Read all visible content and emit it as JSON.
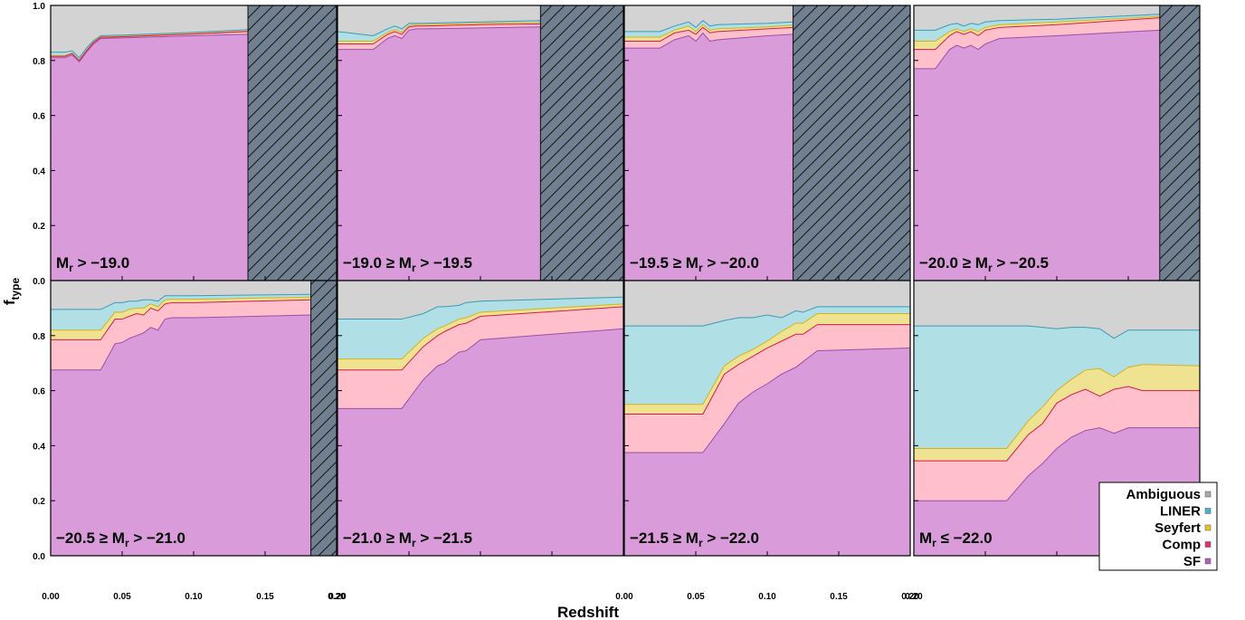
{
  "chart_data": {
    "type": "area",
    "stacked": true,
    "xlabel": "Redshift",
    "ylabel": "f",
    "ylabel_sub": "type",
    "xlim": [
      0.0,
      0.2
    ],
    "ylim": [
      0.0,
      1.0
    ],
    "x_ticks": [
      "0.00",
      "0.05",
      "0.10",
      "0.15",
      "0.20"
    ],
    "y_ticks": [
      "0.0",
      "0.2",
      "0.4",
      "0.6",
      "0.8",
      "1.0"
    ],
    "legend": {
      "placement": "lower-right",
      "entries": [
        {
          "label": "Ambiguous",
          "color": "#aaaaaa"
        },
        {
          "label": "LINER",
          "color": "#4ab3c9"
        },
        {
          "label": "Seyfert",
          "color": "#e8c230"
        },
        {
          "label": "Comp",
          "color": "#e0306a"
        },
        {
          "label": "SF",
          "color": "#b060c0"
        }
      ]
    },
    "colors": {
      "SF": "#da9bda",
      "Comp": "#ffc0cb",
      "Seyfert": "#efe391",
      "LINER": "#b0dfe5",
      "Ambiguous": "#d3d3d3",
      "boundary_sf": "#9a4fa8",
      "boundary_comp": "#d81b4a",
      "boundary_seyfert": "#d4b21e",
      "boundary_liner": "#3a9ab8",
      "hatch_bg": "#708090"
    },
    "panels": [
      {
        "label": {
          "pre": "M",
          "sub": "r",
          "post": " > −19.0"
        },
        "hatch_from": 0.138,
        "x": [
          0.0,
          0.01,
          0.015,
          0.02,
          0.025,
          0.03,
          0.035,
          0.05,
          0.1,
          0.138
        ],
        "SF": [
          0.81,
          0.81,
          0.82,
          0.795,
          0.83,
          0.86,
          0.88,
          0.882,
          0.89,
          0.895
        ],
        "Comp": [
          0.815,
          0.815,
          0.825,
          0.8,
          0.835,
          0.865,
          0.884,
          0.886,
          0.896,
          0.905
        ],
        "Seyfert": [
          0.818,
          0.818,
          0.827,
          0.802,
          0.837,
          0.867,
          0.886,
          0.888,
          0.898,
          0.907
        ],
        "LINER": [
          0.83,
          0.83,
          0.835,
          0.81,
          0.845,
          0.872,
          0.89,
          0.892,
          0.902,
          0.912
        ]
      },
      {
        "label": {
          "pre": "−19.0 ≥ M",
          "sub": "r",
          "post": " > −19.5"
        },
        "hatch_from": 0.142,
        "x": [
          0.0,
          0.025,
          0.035,
          0.04,
          0.045,
          0.05,
          0.055,
          0.06,
          0.1,
          0.142
        ],
        "SF": [
          0.84,
          0.84,
          0.88,
          0.89,
          0.88,
          0.91,
          0.915,
          0.915,
          0.918,
          0.922
        ],
        "Comp": [
          0.86,
          0.86,
          0.895,
          0.905,
          0.895,
          0.922,
          0.925,
          0.925,
          0.93,
          0.933
        ],
        "Seyfert": [
          0.87,
          0.87,
          0.902,
          0.912,
          0.902,
          0.927,
          0.93,
          0.93,
          0.935,
          0.938
        ],
        "LINER": [
          0.905,
          0.89,
          0.915,
          0.925,
          0.915,
          0.935,
          0.935,
          0.935,
          0.94,
          0.945
        ]
      },
      {
        "label": {
          "pre": "−19.5 ≥ M",
          "sub": "r",
          "post": " > −20.0"
        },
        "hatch_from": 0.118,
        "x": [
          0.0,
          0.025,
          0.035,
          0.045,
          0.05,
          0.055,
          0.06,
          0.065,
          0.1,
          0.118
        ],
        "SF": [
          0.845,
          0.845,
          0.875,
          0.89,
          0.87,
          0.9,
          0.87,
          0.875,
          0.89,
          0.895
        ],
        "Comp": [
          0.87,
          0.87,
          0.9,
          0.91,
          0.895,
          0.92,
          0.9,
          0.905,
          0.915,
          0.92
        ],
        "Seyfert": [
          0.885,
          0.885,
          0.91,
          0.925,
          0.905,
          0.93,
          0.91,
          0.915,
          0.922,
          0.928
        ],
        "LINER": [
          0.905,
          0.905,
          0.925,
          0.94,
          0.92,
          0.945,
          0.925,
          0.93,
          0.935,
          0.94
        ]
      },
      {
        "label": {
          "pre": "−20.0 ≥ M",
          "sub": "r",
          "post": " > −20.5"
        },
        "hatch_from": 0.172,
        "x": [
          0.0,
          0.015,
          0.025,
          0.03,
          0.035,
          0.04,
          0.045,
          0.05,
          0.06,
          0.1,
          0.172
        ],
        "SF": [
          0.77,
          0.77,
          0.84,
          0.855,
          0.845,
          0.855,
          0.84,
          0.86,
          0.88,
          0.89,
          0.91
        ],
        "Comp": [
          0.84,
          0.84,
          0.89,
          0.905,
          0.895,
          0.905,
          0.89,
          0.91,
          0.92,
          0.93,
          0.955
        ],
        "Seyfert": [
          0.87,
          0.87,
          0.905,
          0.915,
          0.905,
          0.915,
          0.905,
          0.92,
          0.93,
          0.94,
          0.96
        ],
        "LINER": [
          0.91,
          0.91,
          0.93,
          0.935,
          0.925,
          0.935,
          0.93,
          0.94,
          0.945,
          0.95,
          0.968
        ]
      },
      {
        "label": {
          "pre": "−20.5 ≥ M",
          "sub": "r",
          "post": " > −21.0"
        },
        "hatch_from": 0.182,
        "x": [
          0.0,
          0.035,
          0.045,
          0.05,
          0.055,
          0.06,
          0.065,
          0.07,
          0.075,
          0.08,
          0.085,
          0.09,
          0.1,
          0.182
        ],
        "SF": [
          0.675,
          0.675,
          0.77,
          0.775,
          0.79,
          0.8,
          0.81,
          0.83,
          0.82,
          0.86,
          0.865,
          0.865,
          0.865,
          0.875
        ],
        "Comp": [
          0.785,
          0.785,
          0.86,
          0.86,
          0.87,
          0.88,
          0.875,
          0.9,
          0.89,
          0.915,
          0.92,
          0.92,
          0.92,
          0.93
        ],
        "Seyfert": [
          0.82,
          0.82,
          0.885,
          0.885,
          0.895,
          0.9,
          0.9,
          0.915,
          0.905,
          0.93,
          0.932,
          0.932,
          0.932,
          0.94
        ],
        "LINER": [
          0.895,
          0.895,
          0.92,
          0.92,
          0.925,
          0.925,
          0.93,
          0.93,
          0.925,
          0.945,
          0.945,
          0.945,
          0.945,
          0.95
        ]
      },
      {
        "label": {
          "pre": "−21.0 ≥ M",
          "sub": "r",
          "post": " > −21.5"
        },
        "hatch_from": null,
        "x": [
          0.0,
          0.045,
          0.06,
          0.07,
          0.075,
          0.085,
          0.09,
          0.1,
          0.2
        ],
        "SF": [
          0.535,
          0.535,
          0.64,
          0.69,
          0.7,
          0.74,
          0.745,
          0.785,
          0.825
        ],
        "Comp": [
          0.675,
          0.675,
          0.76,
          0.8,
          0.815,
          0.84,
          0.845,
          0.87,
          0.905
        ],
        "Seyfert": [
          0.715,
          0.715,
          0.79,
          0.825,
          0.835,
          0.86,
          0.865,
          0.885,
          0.915
        ],
        "LINER": [
          0.86,
          0.86,
          0.88,
          0.905,
          0.905,
          0.91,
          0.92,
          0.925,
          0.94
        ]
      },
      {
        "label": {
          "pre": "−21.5 ≥ M",
          "sub": "r",
          "post": " > −22.0"
        },
        "hatch_from": null,
        "x": [
          0.0,
          0.055,
          0.07,
          0.08,
          0.09,
          0.1,
          0.11,
          0.12,
          0.125,
          0.135,
          0.2
        ],
        "SF": [
          0.375,
          0.375,
          0.48,
          0.555,
          0.595,
          0.625,
          0.66,
          0.685,
          0.705,
          0.745,
          0.755
        ],
        "Comp": [
          0.515,
          0.515,
          0.66,
          0.695,
          0.725,
          0.755,
          0.78,
          0.805,
          0.805,
          0.84,
          0.84
        ],
        "Seyfert": [
          0.55,
          0.55,
          0.69,
          0.725,
          0.75,
          0.78,
          0.815,
          0.845,
          0.845,
          0.88,
          0.88
        ],
        "LINER": [
          0.835,
          0.835,
          0.855,
          0.865,
          0.865,
          0.875,
          0.865,
          0.89,
          0.885,
          0.905,
          0.905
        ]
      },
      {
        "label": {
          "pre": "M",
          "sub": "r",
          "post": " ≤ −22.0"
        },
        "hatch_from": null,
        "x": [
          0.0,
          0.065,
          0.08,
          0.09,
          0.1,
          0.11,
          0.12,
          0.13,
          0.14,
          0.15,
          0.16,
          0.2
        ],
        "SF": [
          0.2,
          0.2,
          0.29,
          0.335,
          0.39,
          0.43,
          0.455,
          0.465,
          0.445,
          0.465,
          0.465,
          0.465
        ],
        "Comp": [
          0.345,
          0.345,
          0.44,
          0.48,
          0.555,
          0.585,
          0.605,
          0.58,
          0.605,
          0.615,
          0.6,
          0.6
        ],
        "Seyfert": [
          0.39,
          0.39,
          0.49,
          0.54,
          0.6,
          0.64,
          0.675,
          0.68,
          0.65,
          0.685,
          0.695,
          0.69
        ],
        "LINER": [
          0.835,
          0.835,
          0.835,
          0.83,
          0.825,
          0.83,
          0.83,
          0.825,
          0.79,
          0.82,
          0.82,
          0.82
        ]
      }
    ]
  }
}
